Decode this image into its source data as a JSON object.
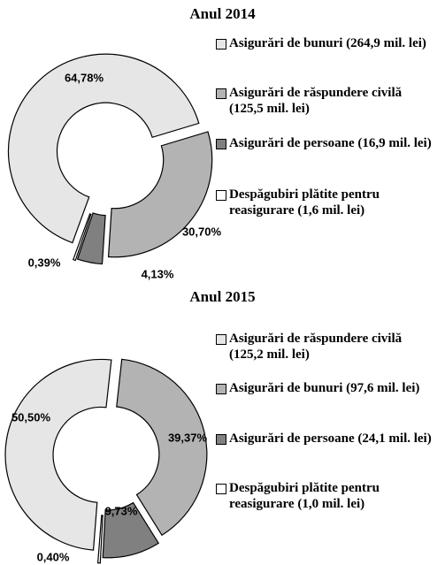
{
  "chart_data": [
    {
      "type": "pie",
      "title": "Anul 2014",
      "categories": [
        "Asigurări de bunuri (264,9 mil. lei)",
        "Asigurări de răspundere civilă (125,5 mil. lei)",
        "Asigurări de persoane (16,9 mil. lei)",
        "Despăgubiri plătite pentru reasigurare (1,6 mil. lei)"
      ],
      "values": [
        64.78,
        30.7,
        4.13,
        0.39
      ],
      "value_labels": [
        "64,78%",
        "30,70%",
        "4,13%",
        "0,39%"
      ],
      "colors": [
        "#e6e6e6",
        "#b3b3b3",
        "#808080",
        "#ffffff"
      ]
    },
    {
      "type": "pie",
      "title": "Anul 2015",
      "categories": [
        "Asigurări de răspundere civilă (125,2 mil. lei)",
        "Asigurări de bunuri (97,6 mil. lei)",
        "Asigurări de persoane (24,1 mil. lei)",
        "Despăgubiri plătite pentru reasigurare (1,0 mil. lei)"
      ],
      "values": [
        50.5,
        39.37,
        9.73,
        0.4
      ],
      "value_labels": [
        "50,50%",
        "39,37%",
        "9,73%",
        "0,40%"
      ],
      "colors": [
        "#e6e6e6",
        "#b3b3b3",
        "#808080",
        "#ffffff"
      ]
    }
  ]
}
